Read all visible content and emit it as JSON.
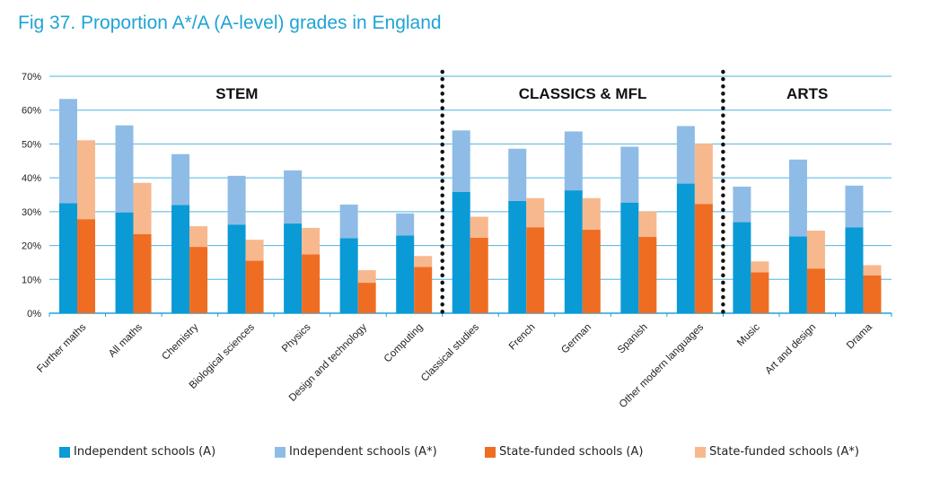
{
  "title": "Fig 37. Proportion A*/A (A-level) grades in England",
  "chart_data": {
    "type": "bar",
    "title": "Fig 37. Proportion A*/A (A-level) grades in England",
    "xlabel": "",
    "ylabel": "",
    "ylim": [
      0,
      70
    ],
    "y_ticks": [
      "0%",
      "10%",
      "20%",
      "30%",
      "40%",
      "50%",
      "60%",
      "70%"
    ],
    "grid": true,
    "stacked_pairs": true,
    "groups": [
      {
        "label": "STEM",
        "start": 0,
        "end": 6
      },
      {
        "label": "CLASSICS & MFL",
        "start": 7,
        "end": 11
      },
      {
        "label": "ARTS",
        "start": 12,
        "end": 14
      }
    ],
    "categories": [
      "Further maths",
      "All maths",
      "Chemistry",
      "Biological sciences",
      "Physics",
      "Design and technology",
      "Computing",
      "Classical studies",
      "French",
      "German",
      "Spanish",
      "Other modern languages",
      "Music",
      "Art and design",
      "Drama"
    ],
    "series": [
      {
        "name": "Independent schools (A)",
        "color": "#0a9ad6",
        "values": [
          32.5,
          29.8,
          32,
          26.2,
          26.5,
          22.2,
          23,
          35.8,
          33.2,
          36.3,
          32.7,
          38.3,
          26.9,
          22.7,
          25.4
        ]
      },
      {
        "name": "Independent schools (A*)",
        "color": "#8fbce6",
        "values": [
          30.8,
          25.7,
          15,
          14.4,
          15.7,
          9.9,
          6.5,
          18.2,
          15.4,
          17.4,
          16.5,
          17,
          10.5,
          22.7,
          12.3
        ]
      },
      {
        "name": "State-funded schools (A)",
        "color": "#ef6d22",
        "values": [
          27.8,
          23.4,
          19.6,
          15.5,
          17.4,
          9,
          13.7,
          22.3,
          25.4,
          24.7,
          22.6,
          32.3,
          12.1,
          13.2,
          11.2
        ]
      },
      {
        "name": "State-funded schools (A*)",
        "color": "#f8b88e",
        "values": [
          23.3,
          15.1,
          6.1,
          6.2,
          7.8,
          3.7,
          3.2,
          6.2,
          8.6,
          9.3,
          7.5,
          17.8,
          3.2,
          11.2,
          3
        ]
      }
    ]
  }
}
